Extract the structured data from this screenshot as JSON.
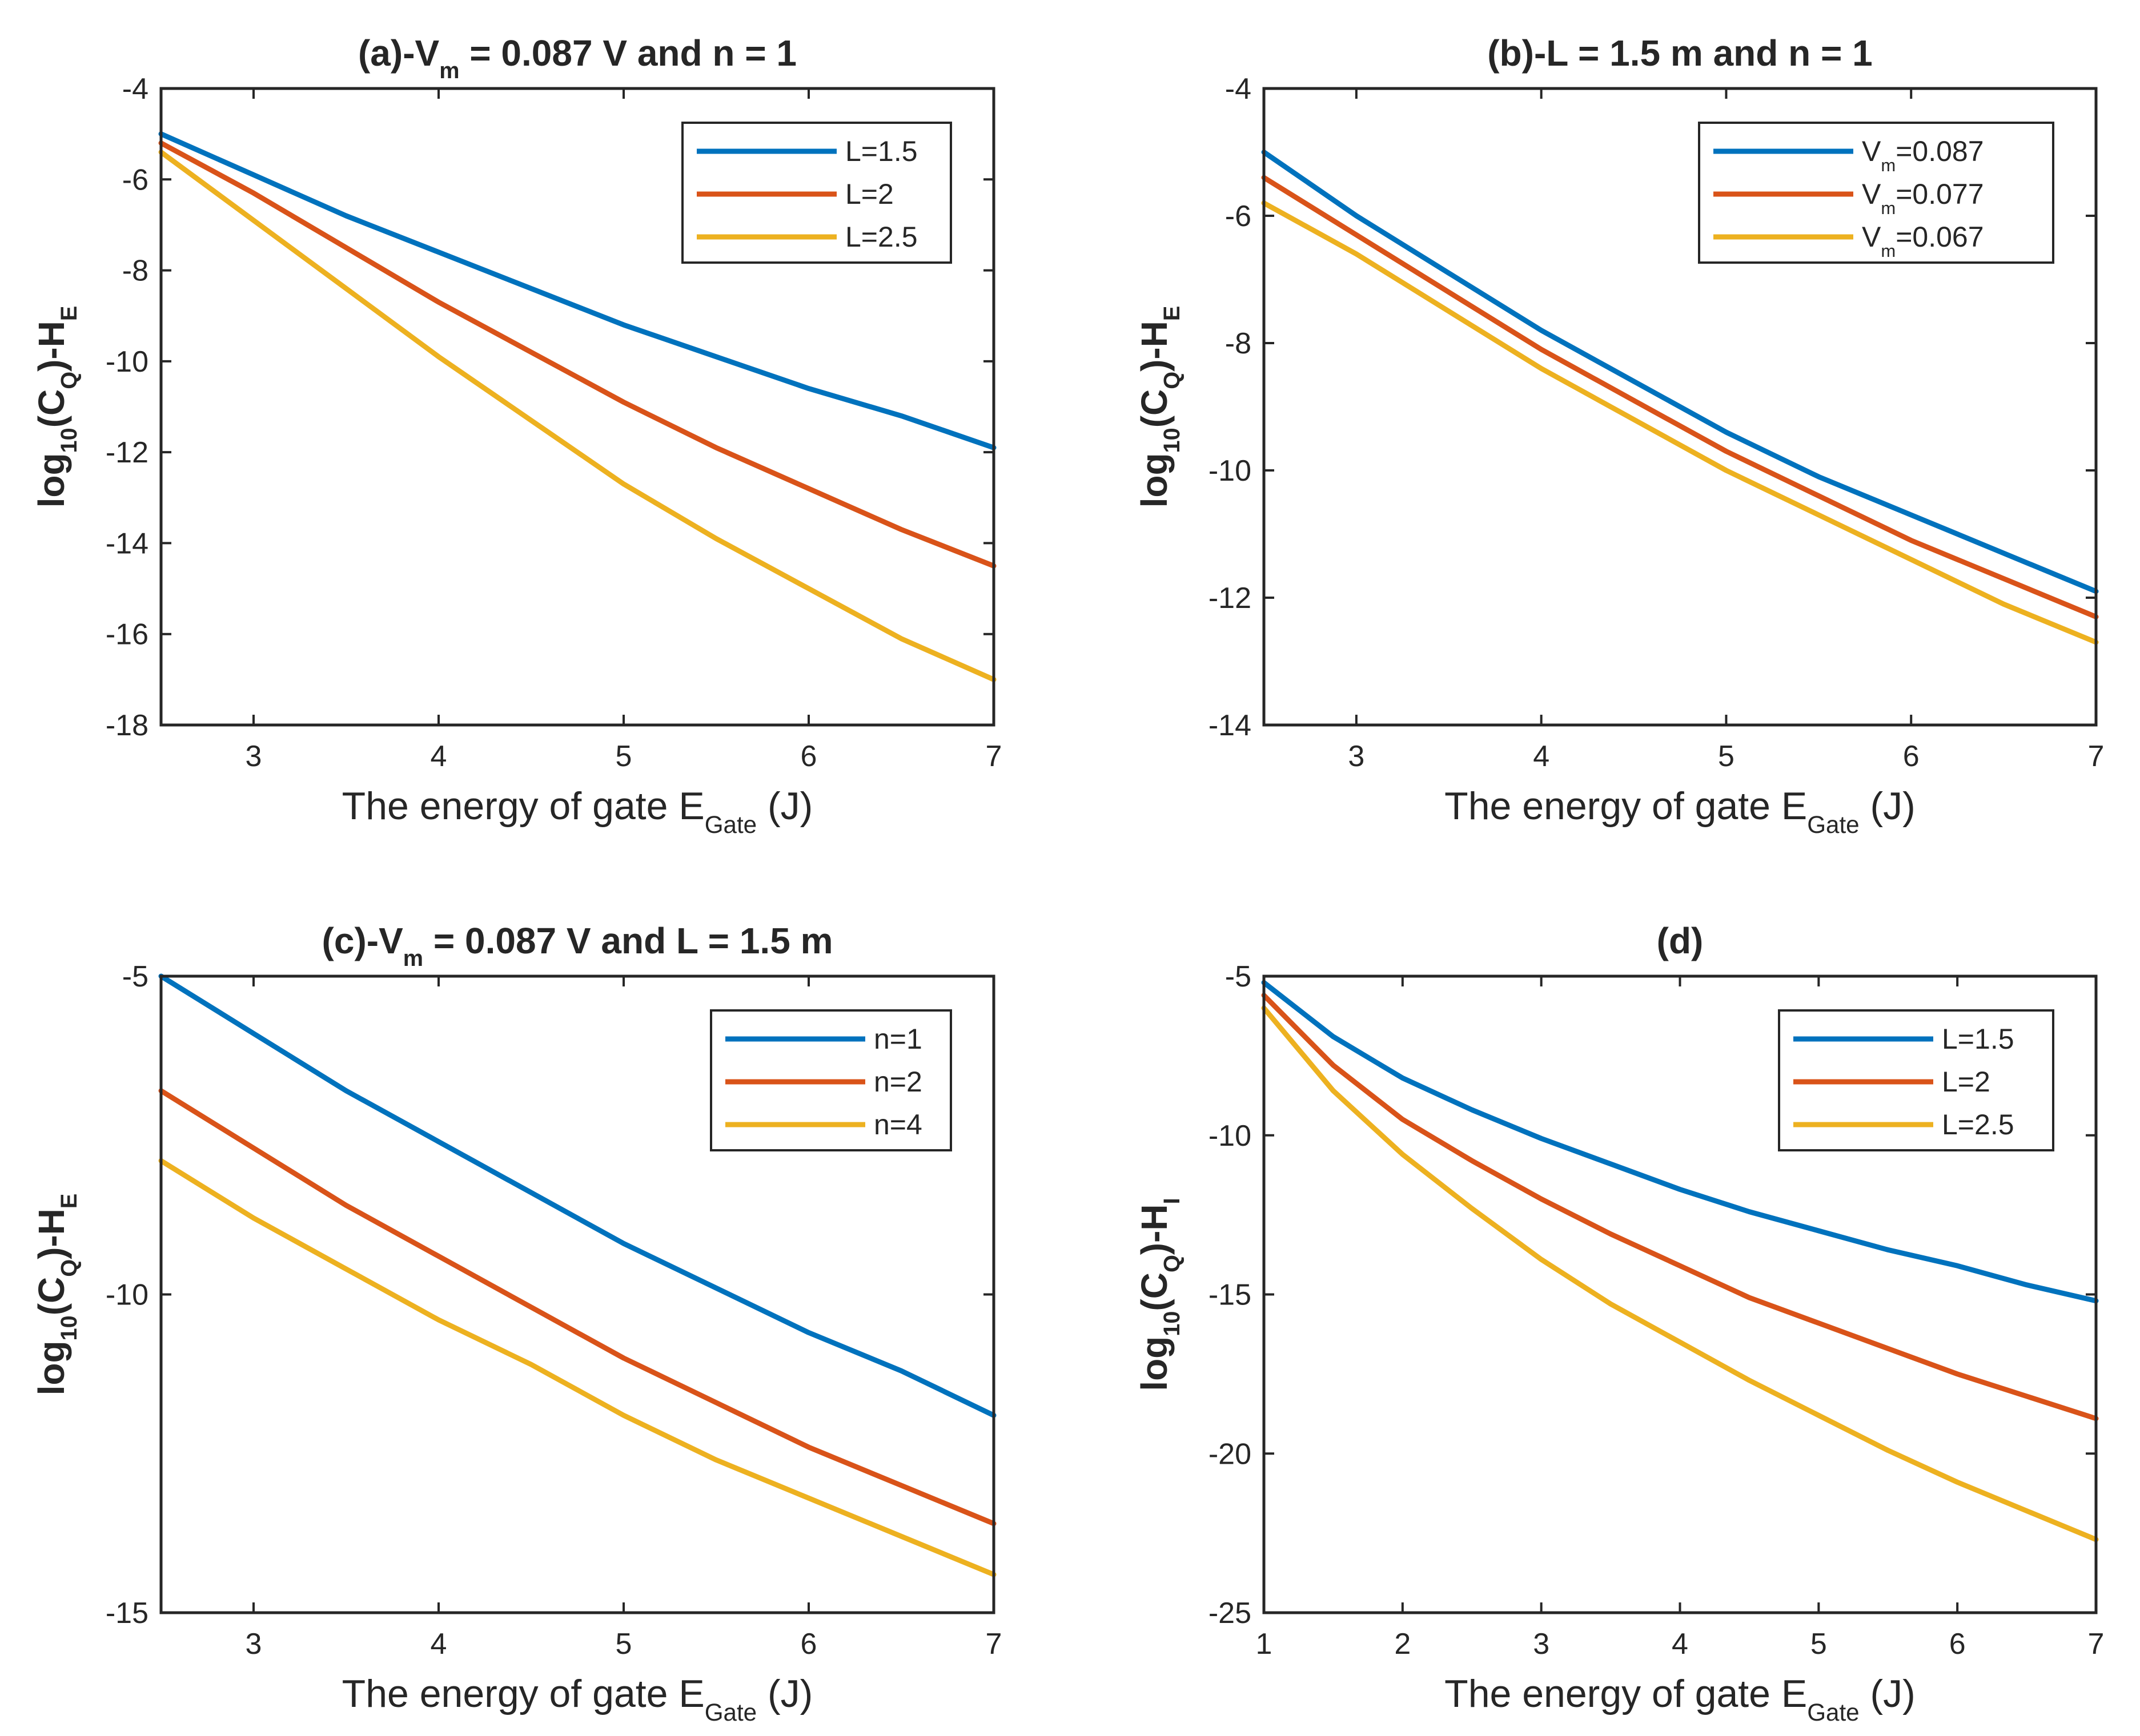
{
  "colors": {
    "blue": "#0072BD",
    "red": "#D95319",
    "yellow": "#EDB120"
  },
  "chart_data": [
    {
      "id": "a",
      "type": "line",
      "title": {
        "pre": "(a)-V",
        "sub": "m",
        "post": " = 0.087 V and n = 1"
      },
      "xlabel": {
        "pre": "The energy of gate E",
        "sub": "Gate",
        "post": " (J)"
      },
      "ylabel": {
        "pre": "log",
        "sub1": "10",
        "mid": "(C",
        "sub2": "Q",
        "mid2": ")-H",
        "sub3": "E"
      },
      "xlim": [
        2.5,
        7
      ],
      "ylim": [
        -18,
        -4
      ],
      "xticks": [
        3,
        4,
        5,
        6,
        7
      ],
      "yticks": [
        -18,
        -16,
        -14,
        -12,
        -10,
        -8,
        -6,
        -4
      ],
      "legend_position": "top-right",
      "series": [
        {
          "name": "L=1.5",
          "legend": {
            "pre": "L=1.5"
          },
          "color": "#0072BD",
          "x": [
            2.5,
            3,
            3.5,
            4,
            4.5,
            5,
            5.5,
            6,
            6.5,
            7
          ],
          "y": [
            -5.0,
            -5.9,
            -6.8,
            -7.6,
            -8.4,
            -9.2,
            -9.9,
            -10.6,
            -11.2,
            -11.9
          ]
        },
        {
          "name": "L=2",
          "legend": {
            "pre": "L=2"
          },
          "color": "#D95319",
          "x": [
            2.5,
            3,
            3.5,
            4,
            4.5,
            5,
            5.5,
            6,
            6.5,
            7
          ],
          "y": [
            -5.2,
            -6.3,
            -7.5,
            -8.7,
            -9.8,
            -10.9,
            -11.9,
            -12.8,
            -13.7,
            -14.5
          ]
        },
        {
          "name": "L=2.5",
          "legend": {
            "pre": "L=2.5"
          },
          "color": "#EDB120",
          "x": [
            2.5,
            3,
            3.5,
            4,
            4.5,
            5,
            5.5,
            6,
            6.5,
            7
          ],
          "y": [
            -5.4,
            -6.9,
            -8.4,
            -9.9,
            -11.3,
            -12.7,
            -13.9,
            -15.0,
            -16.1,
            -17.0
          ]
        }
      ]
    },
    {
      "id": "b",
      "type": "line",
      "title": {
        "pre": "(b)-L = 1.5 m and n = 1"
      },
      "xlabel": {
        "pre": "The energy of gate E",
        "sub": "Gate",
        "post": " (J)"
      },
      "ylabel": {
        "pre": "log",
        "sub1": "10",
        "mid": "(C",
        "sub2": "Q",
        "mid2": ")-H",
        "sub3": "E"
      },
      "xlim": [
        2.5,
        7
      ],
      "ylim": [
        -14,
        -4
      ],
      "xticks": [
        3,
        4,
        5,
        6,
        7
      ],
      "yticks": [
        -14,
        -12,
        -10,
        -8,
        -6,
        -4
      ],
      "legend_position": "top-right",
      "series": [
        {
          "name": "Vm=0.087",
          "legend": {
            "pre": "V",
            "sub": "m",
            "post": "=0.087"
          },
          "color": "#0072BD",
          "x": [
            2.5,
            3,
            3.5,
            4,
            4.5,
            5,
            5.5,
            6,
            6.5,
            7
          ],
          "y": [
            -5.0,
            -6.0,
            -6.9,
            -7.8,
            -8.6,
            -9.4,
            -10.1,
            -10.7,
            -11.3,
            -11.9
          ]
        },
        {
          "name": "Vm=0.077",
          "legend": {
            "pre": "V",
            "sub": "m",
            "post": "=0.077"
          },
          "color": "#D95319",
          "x": [
            2.5,
            3,
            3.5,
            4,
            4.5,
            5,
            5.5,
            6,
            6.5,
            7
          ],
          "y": [
            -5.4,
            -6.3,
            -7.2,
            -8.1,
            -8.9,
            -9.7,
            -10.4,
            -11.1,
            -11.7,
            -12.3
          ]
        },
        {
          "name": "Vm=0.067",
          "legend": {
            "pre": "V",
            "sub": "m",
            "post": "=0.067"
          },
          "color": "#EDB120",
          "x": [
            2.5,
            3,
            3.5,
            4,
            4.5,
            5,
            5.5,
            6,
            6.5,
            7
          ],
          "y": [
            -5.8,
            -6.6,
            -7.5,
            -8.4,
            -9.2,
            -10.0,
            -10.7,
            -11.4,
            -12.1,
            -12.7
          ]
        }
      ]
    },
    {
      "id": "c",
      "type": "line",
      "title": {
        "pre": "(c)-V",
        "sub": "m",
        "post": " = 0.087 V and L = 1.5 m"
      },
      "xlabel": {
        "pre": "The energy of gate E",
        "sub": "Gate",
        "post": " (J)"
      },
      "ylabel": {
        "pre": "log",
        "sub1": "10",
        "mid": "(C",
        "sub2": "Q",
        "mid2": ")-H",
        "sub3": "E"
      },
      "xlim": [
        2.5,
        7
      ],
      "ylim": [
        -15,
        -5
      ],
      "xticks": [
        3,
        4,
        5,
        6,
        7
      ],
      "yticks": [
        -15,
        -10,
        -5
      ],
      "legend_position": "top-right",
      "series": [
        {
          "name": "n=1",
          "legend": {
            "pre": "n=1"
          },
          "color": "#0072BD",
          "x": [
            2.5,
            3,
            3.5,
            4,
            4.5,
            5,
            5.5,
            6,
            6.5,
            7
          ],
          "y": [
            -5.0,
            -5.9,
            -6.8,
            -7.6,
            -8.4,
            -9.2,
            -9.9,
            -10.6,
            -11.2,
            -11.9
          ]
        },
        {
          "name": "n=2",
          "legend": {
            "pre": "n=2"
          },
          "color": "#D95319",
          "x": [
            2.5,
            3,
            3.5,
            4,
            4.5,
            5,
            5.5,
            6,
            6.5,
            7
          ],
          "y": [
            -6.8,
            -7.7,
            -8.6,
            -9.4,
            -10.2,
            -11.0,
            -11.7,
            -12.4,
            -13.0,
            -13.6
          ]
        },
        {
          "name": "n=4",
          "legend": {
            "pre": "n=4"
          },
          "color": "#EDB120",
          "x": [
            2.5,
            3,
            3.5,
            4,
            4.5,
            5,
            5.5,
            6,
            6.5,
            7
          ],
          "y": [
            -7.9,
            -8.8,
            -9.6,
            -10.4,
            -11.1,
            -11.9,
            -12.6,
            -13.2,
            -13.8,
            -14.4
          ]
        }
      ]
    },
    {
      "id": "d",
      "type": "line",
      "title": {
        "pre": "(d)"
      },
      "xlabel": {
        "pre": "The energy of gate E",
        "sub": "Gate",
        "post": " (J)"
      },
      "ylabel": {
        "pre": "log",
        "sub1": "10",
        "mid": "(C",
        "sub2": "Q",
        "mid2": ")-H",
        "sub3": "I"
      },
      "xlim": [
        1,
        7
      ],
      "ylim": [
        -25,
        -5
      ],
      "xticks": [
        1,
        2,
        3,
        4,
        5,
        6,
        7
      ],
      "yticks": [
        -25,
        -20,
        -15,
        -10,
        -5
      ],
      "legend_position": "top-right",
      "series": [
        {
          "name": "L=1.5",
          "legend": {
            "pre": "L=1.5"
          },
          "color": "#0072BD",
          "x": [
            1,
            1.5,
            2,
            2.5,
            3,
            3.5,
            4,
            4.5,
            5,
            5.5,
            6,
            6.5,
            7
          ],
          "y": [
            -5.2,
            -6.9,
            -8.2,
            -9.2,
            -10.1,
            -10.9,
            -11.7,
            -12.4,
            -13.0,
            -13.6,
            -14.1,
            -14.7,
            -15.2
          ]
        },
        {
          "name": "L=2",
          "legend": {
            "pre": "L=2"
          },
          "color": "#D95319",
          "x": [
            1,
            1.5,
            2,
            2.5,
            3,
            3.5,
            4,
            4.5,
            5,
            5.5,
            6,
            6.5,
            7
          ],
          "y": [
            -5.6,
            -7.8,
            -9.5,
            -10.8,
            -12.0,
            -13.1,
            -14.1,
            -15.1,
            -15.9,
            -16.7,
            -17.5,
            -18.2,
            -18.9
          ]
        },
        {
          "name": "L=2.5",
          "legend": {
            "pre": "L=2.5"
          },
          "color": "#EDB120",
          "x": [
            1,
            1.5,
            2,
            2.5,
            3,
            3.5,
            4,
            4.5,
            5,
            5.5,
            6,
            6.5,
            7
          ],
          "y": [
            -6.0,
            -8.6,
            -10.6,
            -12.3,
            -13.9,
            -15.3,
            -16.5,
            -17.7,
            -18.8,
            -19.9,
            -20.9,
            -21.8,
            -22.7
          ]
        }
      ]
    }
  ]
}
